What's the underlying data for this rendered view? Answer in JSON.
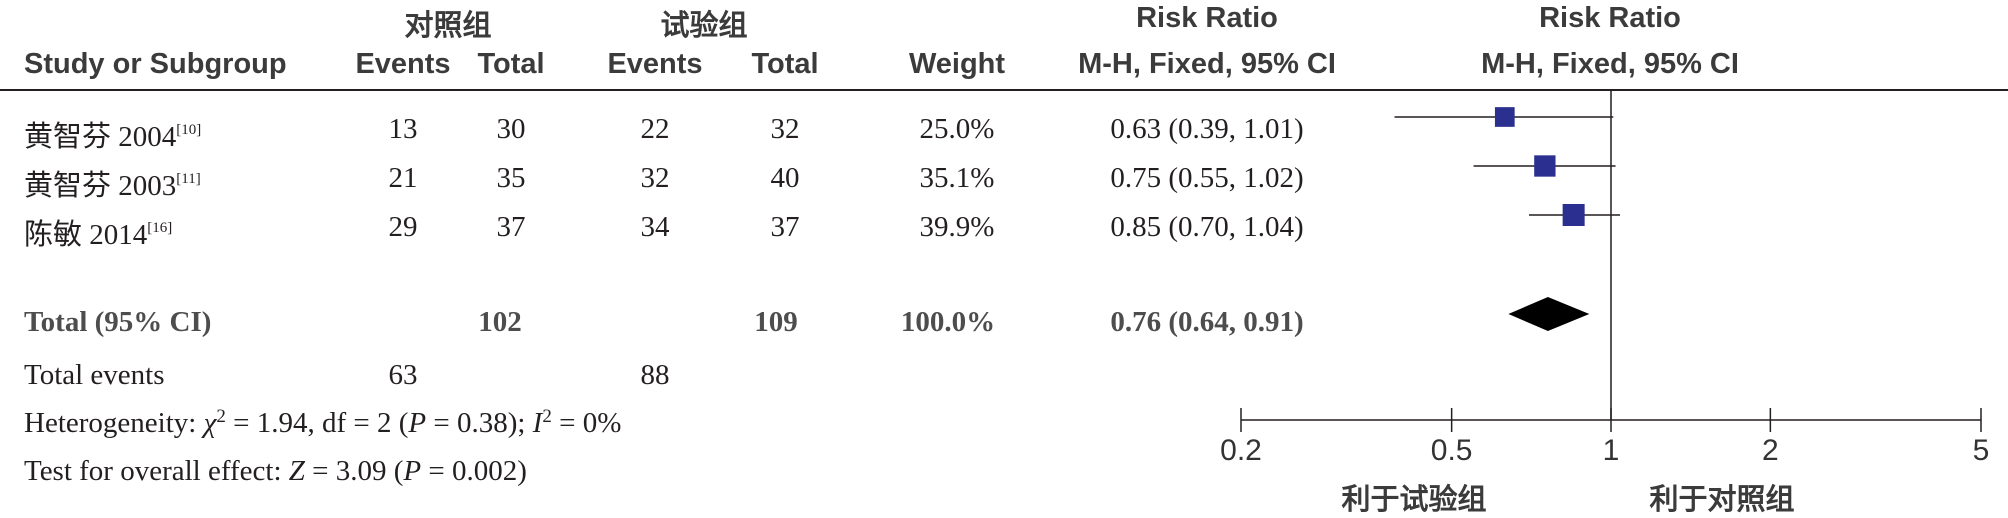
{
  "header": {
    "group_control": "对照组",
    "group_trial": "试验组",
    "rr_title_1": "Risk Ratio",
    "rr_title_2": "Risk Ratio",
    "col_study": "Study or Subgroup",
    "col_events_control": "Events",
    "col_total_control": "Total",
    "col_events_trial": "Events",
    "col_total_trial": "Total",
    "col_weight": "Weight",
    "col_method_1": "M-H, Fixed, 95% CI",
    "col_method_2": "M-H, Fixed, 95% CI"
  },
  "studies": [
    {
      "name": "黄智芬 2004",
      "ref": "[10]",
      "events_control": "13",
      "total_control": "30",
      "events_trial": "22",
      "total_trial": "32",
      "weight": "25.0%",
      "ci_text": "0.63 (0.39, 1.01)"
    },
    {
      "name": "黄智芬 2003",
      "ref": "[11]",
      "events_control": "21",
      "total_control": "35",
      "events_trial": "32",
      "total_trial": "40",
      "weight": "35.1%",
      "ci_text": "0.75 (0.55, 1.02)"
    },
    {
      "name": "陈敏 2014",
      "ref": "[16]",
      "events_control": "29",
      "total_control": "37",
      "events_trial": "34",
      "total_trial": "37",
      "weight": "39.9%",
      "ci_text": "0.85 (0.70, 1.04)"
    }
  ],
  "total": {
    "label": "Total (95% CI)",
    "total_control": "102",
    "total_trial": "109",
    "weight": "100.0%",
    "ci_text": "0.76 (0.64, 0.91)"
  },
  "total_events": {
    "label": "Total events",
    "control": "63",
    "trial": "88"
  },
  "heterogeneity": {
    "prefix": "Heterogeneity: ",
    "chi_sym": "χ",
    "chi_sup": "2",
    "chi_val": " = 1.94, df = 2 (",
    "p_sym": "P",
    "p_val": " = 0.38); ",
    "i_sym": "I",
    "i_sup": "2",
    "i_val": " = 0%"
  },
  "overall": {
    "prefix": "Test for overall effect: ",
    "z_sym": "Z",
    "z_val": " = 3.09 (",
    "p_sym": "P",
    "p_val": " = 0.002)"
  },
  "axis": {
    "favor_left": "利于试验组",
    "favor_right": "利于对照组"
  },
  "colors": {
    "marker": "#2b2f8f",
    "diamond": "#000000",
    "line": "#231f20"
  },
  "chart_data": {
    "type": "scatter",
    "scale": "log",
    "xlim": [
      0.2,
      5
    ],
    "ticks": [
      0.2,
      0.5,
      1,
      2,
      5
    ],
    "tick_labels": [
      "0.2",
      "0.5",
      "1",
      "2",
      "5"
    ],
    "null_line": 1,
    "points": [
      {
        "study": "黄智芬 2004",
        "rr": 0.63,
        "lower": 0.39,
        "upper": 1.01,
        "weight": 25.0
      },
      {
        "study": "黄智芬 2003",
        "rr": 0.75,
        "lower": 0.55,
        "upper": 1.02,
        "weight": 35.1
      },
      {
        "study": "陈敏 2014",
        "rr": 0.85,
        "lower": 0.7,
        "upper": 1.04,
        "weight": 39.9
      }
    ],
    "pooled": {
      "rr": 0.76,
      "lower": 0.64,
      "upper": 0.91
    }
  }
}
